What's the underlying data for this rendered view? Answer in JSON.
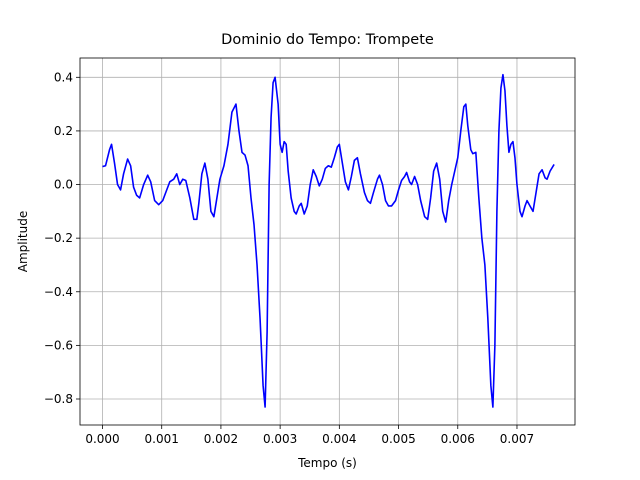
{
  "chart_data": {
    "type": "line",
    "title": "Dominio do Tempo: Trompete",
    "xlabel": "Tempo (s)",
    "ylabel": "Amplitude",
    "color": "#0000ff",
    "grid": true,
    "xlim": [
      -0.00038,
      0.00798
    ],
    "ylim": [
      -0.897,
      0.472
    ],
    "xticks": [
      {
        "value": 0,
        "label": "0.000"
      },
      {
        "value": 0.001,
        "label": "0.001"
      },
      {
        "value": 0.002,
        "label": "0.002"
      },
      {
        "value": 0.003,
        "label": "0.003"
      },
      {
        "value": 0.004,
        "label": "0.004"
      },
      {
        "value": 0.005,
        "label": "0.005"
      },
      {
        "value": 0.006,
        "label": "0.006"
      },
      {
        "value": 0.007,
        "label": "0.007"
      }
    ],
    "yticks": [
      {
        "value": -0.8,
        "label": "−0.8"
      },
      {
        "value": -0.6,
        "label": "−0.6"
      },
      {
        "value": -0.4,
        "label": "−0.4"
      },
      {
        "value": -0.2,
        "label": "−0.2"
      },
      {
        "value": 0,
        "label": "0.0"
      },
      {
        "value": 0.2,
        "label": "0.2"
      },
      {
        "value": 0.4,
        "label": "0.4"
      }
    ],
    "x": [
      0,
      5.1e-05,
      0.000119,
      0.000153,
      0.000203,
      0.000254,
      0.000305,
      0.000356,
      0.000424,
      0.000475,
      0.000525,
      0.000576,
      0.000627,
      0.000695,
      0.000763,
      0.000814,
      0.000881,
      0.000949,
      0.001017,
      0.001085,
      0.001136,
      0.001203,
      0.001254,
      0.001305,
      0.001356,
      0.001407,
      0.001475,
      0.001542,
      0.001593,
      0.001627,
      0.001678,
      0.001729,
      0.00178,
      0.001831,
      0.001881,
      0.001932,
      0.001983,
      0.002051,
      0.002119,
      0.002186,
      0.002254,
      0.002305,
      0.002356,
      0.002407,
      0.002458,
      0.002508,
      0.002559,
      0.00261,
      0.002661,
      0.002712,
      0.002746,
      0.00278,
      0.002814,
      0.002847,
      0.002881,
      0.002915,
      0.002966,
      0.003,
      0.003034,
      0.003068,
      0.003102,
      0.003136,
      0.003186,
      0.003237,
      0.003271,
      0.003322,
      0.003356,
      0.003407,
      0.003458,
      0.003508,
      0.003559,
      0.00361,
      0.003661,
      0.003712,
      0.003763,
      0.003814,
      0.003864,
      0.003915,
      0.003966,
      0.004,
      0.004051,
      0.004102,
      0.004153,
      0.004203,
      0.004254,
      0.004305,
      0.004356,
      0.004424,
      0.004475,
      0.004525,
      0.004576,
      0.004644,
      0.004678,
      0.004729,
      0.00478,
      0.00483,
      0.004881,
      0.004949,
      0.005,
      0.005051,
      0.005102,
      0.005136,
      0.005186,
      0.00522,
      0.005271,
      0.005322,
      0.005373,
      0.005441,
      0.005492,
      0.005542,
      0.005593,
      0.005644,
      0.005695,
      0.005746,
      0.005797,
      0.005847,
      0.005898,
      0.005949,
      0.006,
      0.006051,
      0.006102,
      0.006136,
      0.006169,
      0.00622,
      0.006254,
      0.006305,
      0.006356,
      0.006407,
      0.006458,
      0.006508,
      0.006559,
      0.006593,
      0.006627,
      0.006661,
      0.006695,
      0.006729,
      0.006763,
      0.006797,
      0.00683,
      0.006864,
      0.006898,
      0.006932,
      0.006966,
      0.007,
      0.007051,
      0.007085,
      0.007136,
      0.00717,
      0.00722,
      0.007271,
      0.007322,
      0.007373,
      0.007424,
      0.007475,
      0.007508,
      0.007559,
      0.007627
    ],
    "values": [
      0.067,
      0.07,
      0.13,
      0.15,
      0.08,
      0.0,
      -0.02,
      0.04,
      0.095,
      0.07,
      -0.01,
      -0.04,
      -0.05,
      0.0,
      0.035,
      0.01,
      -0.06,
      -0.075,
      -0.06,
      -0.02,
      0.01,
      0.02,
      0.04,
      0.0,
      0.02,
      0.015,
      -0.05,
      -0.13,
      -0.13,
      -0.07,
      0.04,
      0.08,
      0.02,
      -0.1,
      -0.12,
      -0.05,
      0.02,
      0.07,
      0.15,
      0.27,
      0.3,
      0.2,
      0.12,
      0.11,
      0.07,
      -0.05,
      -0.15,
      -0.3,
      -0.5,
      -0.75,
      -0.83,
      -0.55,
      0.0,
      0.25,
      0.38,
      0.4,
      0.3,
      0.15,
      0.12,
      0.16,
      0.15,
      0.05,
      -0.05,
      -0.1,
      -0.11,
      -0.08,
      -0.07,
      -0.11,
      -0.08,
      0.0,
      0.055,
      0.03,
      -0.005,
      0.02,
      0.06,
      0.07,
      0.065,
      0.1,
      0.14,
      0.15,
      0.08,
      0.01,
      -0.02,
      0.03,
      0.09,
      0.1,
      0.04,
      -0.03,
      -0.06,
      -0.07,
      -0.03,
      0.02,
      0.035,
      0.0,
      -0.06,
      -0.08,
      -0.08,
      -0.06,
      -0.02,
      0.015,
      0.03,
      0.045,
      0.01,
      0.0,
      0.03,
      0.0,
      -0.06,
      -0.12,
      -0.13,
      -0.05,
      0.05,
      0.08,
      0.02,
      -0.1,
      -0.14,
      -0.06,
      0.0,
      0.05,
      0.1,
      0.2,
      0.29,
      0.3,
      0.22,
      0.13,
      0.115,
      0.12,
      -0.05,
      -0.2,
      -0.3,
      -0.5,
      -0.75,
      -0.83,
      -0.6,
      -0.1,
      0.2,
      0.36,
      0.41,
      0.35,
      0.22,
      0.12,
      0.15,
      0.16,
      0.1,
      0.0,
      -0.1,
      -0.12,
      -0.08,
      -0.06,
      -0.08,
      -0.1,
      -0.03,
      0.04,
      0.055,
      0.025,
      0.02,
      0.05,
      0.075
    ]
  }
}
